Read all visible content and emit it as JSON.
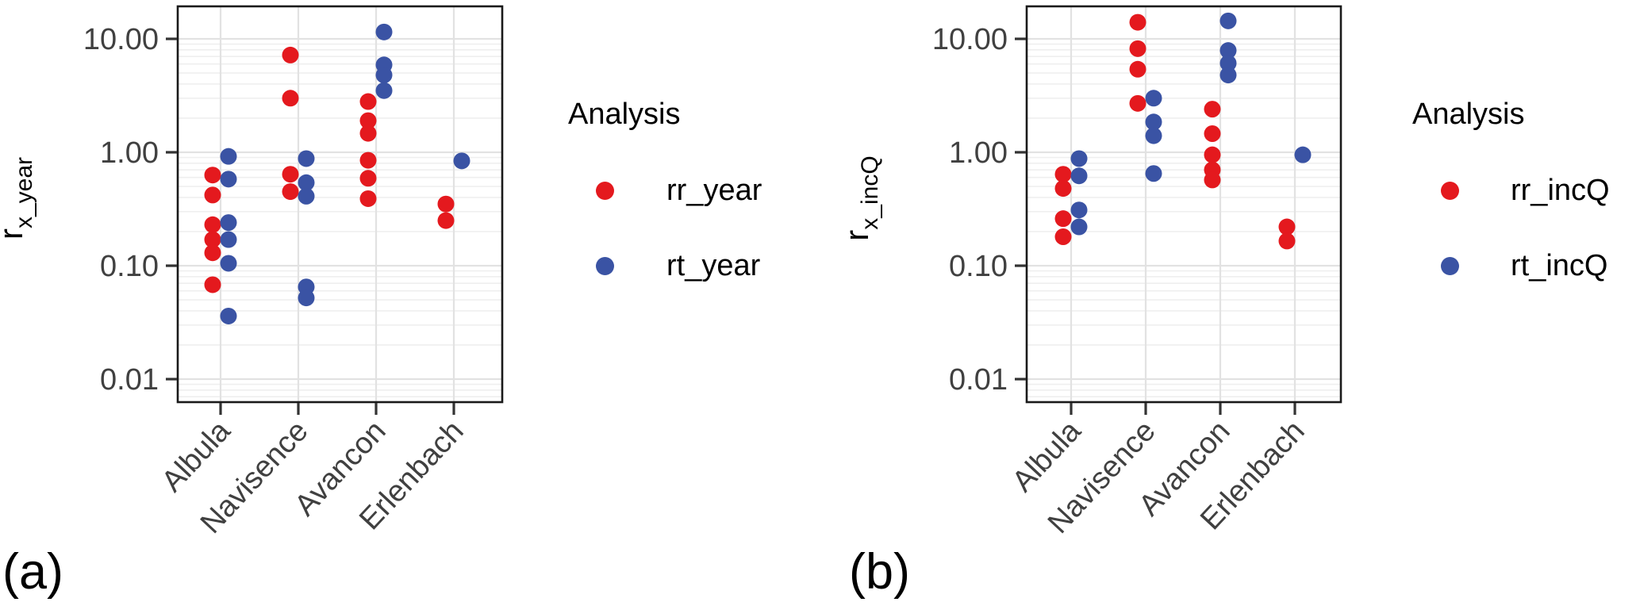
{
  "colors": {
    "red": "#E4191E",
    "blue": "#3A53A4",
    "grid_major": "#E2E2E2",
    "grid_minor": "#EFEFEF",
    "panel_border": "#1A1A1A",
    "tick_mark": "#333333",
    "tick_text": "#404040",
    "axis_title_text": "#000000"
  },
  "chart_data": [
    {
      "type": "scatter",
      "panel_label": "(a)",
      "title": "",
      "xlabel": "",
      "ylabel": {
        "base": "r",
        "sub": "x_year"
      },
      "y_scale": "log10",
      "ylim": [
        0.0063,
        19
      ],
      "grid": "on",
      "categories": [
        "Albula",
        "Navisence",
        "Avancon",
        "Erlenbach"
      ],
      "yticks": [
        {
          "value": 10,
          "label": "10.00"
        },
        {
          "value": 1,
          "label": "1.00"
        },
        {
          "value": 0.1,
          "label": "0.10"
        },
        {
          "value": 0.01,
          "label": "0.01"
        }
      ],
      "legend": {
        "title": "Analysis",
        "position": "right",
        "entries": [
          {
            "label": "rr_year",
            "color_key": "red"
          },
          {
            "label": "rt_year",
            "color_key": "blue"
          }
        ]
      },
      "series": [
        {
          "name": "rr_year",
          "color_key": "red",
          "points": [
            [
              0.63,
              0.42,
              0.23,
              0.17,
              0.13,
              0.068
            ],
            [
              7.2,
              3.0,
              0.64,
              0.45
            ],
            [
              2.8,
              1.9,
              1.47,
              0.85,
              0.59,
              0.39
            ],
            [
              0.35,
              0.25
            ]
          ]
        },
        {
          "name": "rt_year",
          "color_key": "blue",
          "points": [
            [
              0.92,
              0.58,
              0.24,
              0.17,
              0.105,
              0.036
            ],
            [
              0.88,
              0.54,
              0.41,
              0.065,
              0.052
            ],
            [
              11.5,
              5.9,
              4.8,
              3.5
            ],
            [
              0.84
            ]
          ]
        }
      ]
    },
    {
      "type": "scatter",
      "panel_label": "(b)",
      "title": "",
      "xlabel": "",
      "ylabel": {
        "base": "r",
        "sub": "x_incQ"
      },
      "y_scale": "log10",
      "ylim": [
        0.0063,
        19
      ],
      "grid": "on",
      "categories": [
        "Albula",
        "Navisence",
        "Avancon",
        "Erlenbach"
      ],
      "yticks": [
        {
          "value": 10,
          "label": "10.00"
        },
        {
          "value": 1,
          "label": "1.00"
        },
        {
          "value": 0.1,
          "label": "0.10"
        },
        {
          "value": 0.01,
          "label": "0.01"
        }
      ],
      "legend": {
        "title": "Analysis",
        "position": "right",
        "entries": [
          {
            "label": "rr_incQ",
            "color_key": "red"
          },
          {
            "label": "rt_incQ",
            "color_key": "blue"
          }
        ]
      },
      "series": [
        {
          "name": "rr_incQ",
          "color_key": "red",
          "points": [
            [
              0.64,
              0.48,
              0.26,
              0.18
            ],
            [
              14.0,
              8.2,
              5.4,
              2.7
            ],
            [
              2.4,
              1.46,
              0.95,
              0.7,
              0.57
            ],
            [
              0.22,
              0.165
            ]
          ]
        },
        {
          "name": "rt_incQ",
          "color_key": "blue",
          "points": [
            [
              0.88,
              0.62,
              0.31,
              0.22
            ],
            [
              3.0,
              1.85,
              1.4,
              0.65
            ],
            [
              14.4,
              7.9,
              6.1,
              4.8
            ],
            [
              0.95
            ]
          ]
        }
      ]
    }
  ]
}
